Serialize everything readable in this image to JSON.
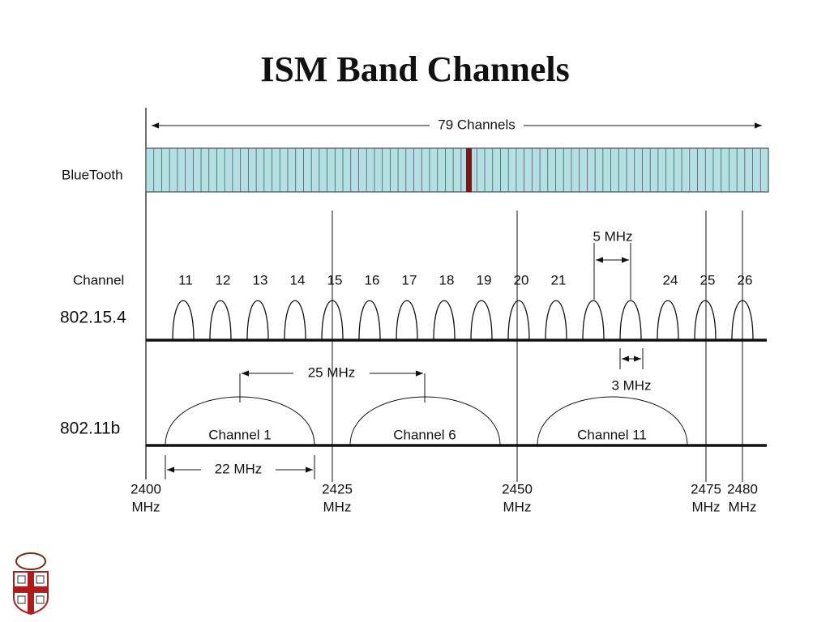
{
  "title": "ISM Band Channels",
  "bluetooth": {
    "label": "BlueTooth",
    "span_label": "79 Channels"
  },
  "zigbee": {
    "label": "802.15.4",
    "channel_heading": "Channel",
    "channels": [
      "11",
      "12",
      "13",
      "14",
      "15",
      "16",
      "17",
      "18",
      "19",
      "20",
      "21",
      null,
      null,
      "24",
      "25",
      "26"
    ],
    "spacing_label": "5 MHz",
    "width_label": "3 MHz"
  },
  "wifi": {
    "label": "802.11b",
    "channels": [
      "Channel 1",
      "Channel 6",
      "Channel 11"
    ],
    "spacing_label": "25 MHz",
    "width_label": "22 MHz"
  },
  "frequencies": [
    {
      "value": "2400",
      "unit": "MHz"
    },
    {
      "value": "2425",
      "unit": "MHz"
    },
    {
      "value": "2450",
      "unit": "MHz"
    },
    {
      "value": "2475",
      "unit": "MHz"
    },
    {
      "value": "2480",
      "unit": "MHz"
    }
  ]
}
